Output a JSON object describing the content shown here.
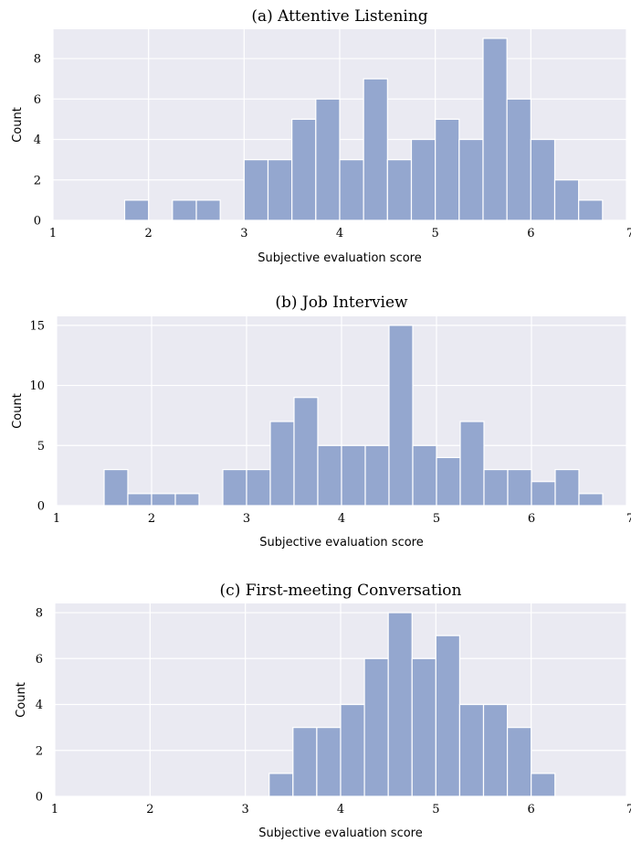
{
  "colors": {
    "bar": "#94a7cf",
    "panel_bg": "#eaeaf2",
    "grid": "#ffffff"
  },
  "chart_data": [
    {
      "type": "bar",
      "title": "(a) Attentive Listening",
      "xlabel": "Subjective evaluation score",
      "ylabel": "Count",
      "xlim": [
        1,
        7
      ],
      "ylim": [
        0,
        9.45
      ],
      "xticks": [
        "1",
        "2",
        "3",
        "4",
        "5",
        "6",
        "7"
      ],
      "yticks": [
        "0",
        "2",
        "4",
        "6",
        "8"
      ],
      "bin_width": 0.25,
      "grid": true,
      "bins": [
        {
          "x0": 1.75,
          "count": 1
        },
        {
          "x0": 2.25,
          "count": 1
        },
        {
          "x0": 2.5,
          "count": 1
        },
        {
          "x0": 3.0,
          "count": 3
        },
        {
          "x0": 3.25,
          "count": 3
        },
        {
          "x0": 3.5,
          "count": 5
        },
        {
          "x0": 3.75,
          "count": 6
        },
        {
          "x0": 4.0,
          "count": 3
        },
        {
          "x0": 4.25,
          "count": 7
        },
        {
          "x0": 4.5,
          "count": 3
        },
        {
          "x0": 4.75,
          "count": 4
        },
        {
          "x0": 5.0,
          "count": 5
        },
        {
          "x0": 5.25,
          "count": 4
        },
        {
          "x0": 5.5,
          "count": 9
        },
        {
          "x0": 5.75,
          "count": 6
        },
        {
          "x0": 6.0,
          "count": 4
        },
        {
          "x0": 6.25,
          "count": 2
        },
        {
          "x0": 6.5,
          "count": 1
        }
      ]
    },
    {
      "type": "bar",
      "title": "(b) Job Interview",
      "xlabel": "Subjective evaluation score",
      "ylabel": "Count",
      "xlim": [
        1,
        7
      ],
      "ylim": [
        0,
        15.75
      ],
      "xticks": [
        "1",
        "2",
        "3",
        "4",
        "5",
        "6",
        "7"
      ],
      "yticks": [
        "0",
        "5",
        "10",
        "15"
      ],
      "bin_width": 0.25,
      "grid": true,
      "bins": [
        {
          "x0": 1.5,
          "count": 3
        },
        {
          "x0": 1.75,
          "count": 1
        },
        {
          "x0": 2.0,
          "count": 1
        },
        {
          "x0": 2.25,
          "count": 1
        },
        {
          "x0": 2.75,
          "count": 3
        },
        {
          "x0": 3.0,
          "count": 3
        },
        {
          "x0": 3.25,
          "count": 7
        },
        {
          "x0": 3.5,
          "count": 9
        },
        {
          "x0": 3.75,
          "count": 5
        },
        {
          "x0": 4.0,
          "count": 5
        },
        {
          "x0": 4.25,
          "count": 5
        },
        {
          "x0": 4.5,
          "count": 15
        },
        {
          "x0": 4.75,
          "count": 5
        },
        {
          "x0": 5.0,
          "count": 4
        },
        {
          "x0": 5.25,
          "count": 7
        },
        {
          "x0": 5.5,
          "count": 3
        },
        {
          "x0": 5.75,
          "count": 3
        },
        {
          "x0": 6.0,
          "count": 2
        },
        {
          "x0": 6.25,
          "count": 3
        },
        {
          "x0": 6.5,
          "count": 1
        }
      ]
    },
    {
      "type": "bar",
      "title": "(c) First-meeting Conversation",
      "xlabel": "Subjective evaluation score",
      "ylabel": "Count",
      "xlim": [
        1,
        7
      ],
      "ylim": [
        0,
        8.4
      ],
      "xticks": [
        "1",
        "2",
        "3",
        "4",
        "5",
        "6",
        "7"
      ],
      "yticks": [
        "0",
        "2",
        "4",
        "6",
        "8"
      ],
      "bin_width": 0.25,
      "grid": true,
      "bins": [
        {
          "x0": 3.25,
          "count": 1
        },
        {
          "x0": 3.5,
          "count": 3
        },
        {
          "x0": 3.75,
          "count": 3
        },
        {
          "x0": 4.0,
          "count": 4
        },
        {
          "x0": 4.25,
          "count": 6
        },
        {
          "x0": 4.5,
          "count": 8
        },
        {
          "x0": 4.75,
          "count": 6
        },
        {
          "x0": 5.0,
          "count": 7
        },
        {
          "x0": 5.25,
          "count": 4
        },
        {
          "x0": 5.5,
          "count": 4
        },
        {
          "x0": 5.75,
          "count": 3
        },
        {
          "x0": 6.0,
          "count": 1
        }
      ]
    }
  ]
}
